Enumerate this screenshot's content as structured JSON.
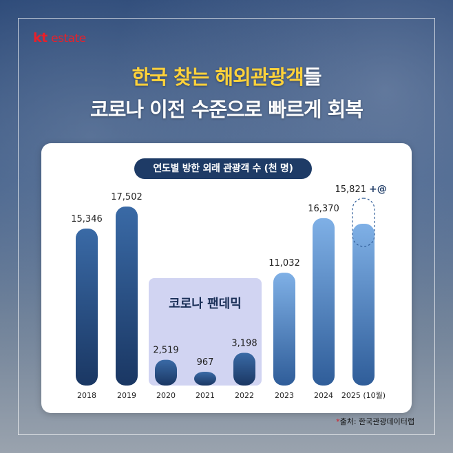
{
  "brand": {
    "logo_kt": "kt",
    "logo_estate": "estate"
  },
  "headline": {
    "line1_highlight": "한국 찾는 해외관광객",
    "line1_rest": "들",
    "line2": "코로나 이전 수준으로 빠르게 회복"
  },
  "source": {
    "asterisk": "*",
    "text": "출처: 한국관광데이터랩"
  },
  "colors": {
    "bar_dark": "#1a3763",
    "bar_light": "#7fb0e6",
    "pandemic_box": "#c9cdf0",
    "pill": "#1e3b66",
    "headline_highlight": "#ffd23a"
  },
  "chart_data": {
    "type": "bar",
    "title": "연도별 방한 외래 관광객 수 (천 명)",
    "categories": [
      "2018",
      "2019",
      "2020",
      "2021",
      "2022",
      "2023",
      "2024",
      "2025 (10월)"
    ],
    "values": [
      15346,
      17502,
      2519,
      967,
      3198,
      11032,
      16370,
      15821
    ],
    "value_labels": [
      "15,346",
      "17,502",
      "2,519",
      "967",
      "3,198",
      "11,032",
      "16,370",
      "15,821"
    ],
    "pandemic_label": "코로나 팬데믹",
    "pandemic_categories": [
      "2020",
      "2021",
      "2022"
    ],
    "projection_annotation": "+@",
    "grid": false,
    "legend": "none"
  }
}
